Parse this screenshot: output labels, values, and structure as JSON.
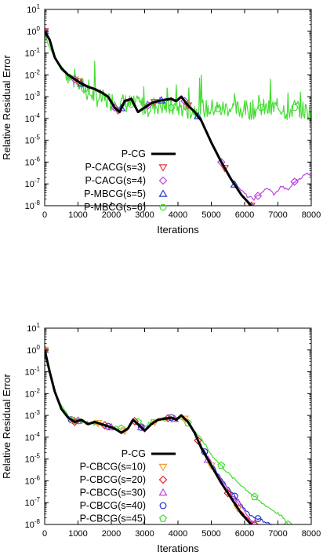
{
  "chart_data": [
    {
      "type": "line",
      "xlabel": "Iterations",
      "ylabel": "Relative Residual Error",
      "xlim": [
        0,
        8000
      ],
      "ylim_log10": [
        -8,
        1
      ],
      "y_scale": "log",
      "grid": false,
      "legend_position": "bottom-left",
      "x_ticks": [
        "0",
        "1000",
        "2000",
        "3000",
        "4000",
        "5000",
        "6000",
        "7000",
        "8000"
      ],
      "y_ticks": [
        {
          "base": "10",
          "exp": "1"
        },
        {
          "base": "10",
          "exp": "0"
        },
        {
          "base": "10",
          "exp": "-1"
        },
        {
          "base": "10",
          "exp": "-2"
        },
        {
          "base": "10",
          "exp": "-3"
        },
        {
          "base": "10",
          "exp": "-4"
        },
        {
          "base": "10",
          "exp": "-5"
        },
        {
          "base": "10",
          "exp": "-6"
        },
        {
          "base": "10",
          "exp": "-7"
        },
        {
          "base": "10",
          "exp": "-8"
        }
      ],
      "series": [
        {
          "name": "P-CG",
          "color": "#000000",
          "marker": "none",
          "width": 3,
          "x": [
            0,
            150,
            300,
            500,
            700,
            900,
            1100,
            1300,
            1500,
            1700,
            1900,
            2100,
            2250,
            2400,
            2600,
            2800,
            3000,
            3200,
            3400,
            3600,
            3800,
            3950,
            4100,
            4300,
            4500,
            4700,
            5000,
            5300,
            5600,
            5900,
            6200
          ],
          "y": [
            0,
            -0.4,
            -1.2,
            -1.7,
            -2.0,
            -2.2,
            -2.4,
            -2.55,
            -2.65,
            -2.8,
            -3.0,
            -3.5,
            -3.7,
            -3.2,
            -3.1,
            -3.7,
            -3.5,
            -3.3,
            -3.2,
            -3.15,
            -3.1,
            -3.2,
            -3.0,
            -3.4,
            -3.7,
            -4.1,
            -5.1,
            -6.0,
            -6.8,
            -7.5,
            -8.0
          ]
        },
        {
          "name": "P-CACG(s=3)",
          "color": "#e8383a",
          "marker": "tri-down",
          "width": 1.2,
          "x": [
            0,
            150,
            300,
            500,
            700,
            900,
            1100,
            1300,
            1500,
            1700,
            1900,
            2100,
            2250,
            2400,
            2600,
            2800,
            3000,
            3200,
            3400,
            3600,
            3800,
            3950,
            4100,
            4300,
            4500,
            4700,
            5000,
            5300,
            5600,
            5900,
            6200
          ],
          "y": [
            0,
            -0.4,
            -1.2,
            -1.7,
            -2.0,
            -2.2,
            -2.4,
            -2.55,
            -2.65,
            -2.8,
            -3.0,
            -3.5,
            -3.7,
            -3.2,
            -3.1,
            -3.7,
            -3.5,
            -3.3,
            -3.2,
            -3.15,
            -3.1,
            -3.2,
            -3.0,
            -3.4,
            -3.7,
            -4.1,
            -5.1,
            -6.0,
            -6.8,
            -7.5,
            -8.0
          ],
          "marker_x": [
            0,
            1000,
            2200,
            3300,
            4300,
            5400,
            6200
          ]
        },
        {
          "name": "P-CACG(s=4)",
          "color": "#bb44dd",
          "marker": "diamond",
          "width": 1.2,
          "x": [
            0,
            150,
            300,
            500,
            700,
            900,
            1100,
            1300,
            1500,
            1700,
            1900,
            2100,
            2250,
            2400,
            2600,
            2800,
            3000,
            3200,
            3400,
            3600,
            3800,
            3950,
            4100,
            4300,
            4500,
            4700,
            5000,
            5300,
            5600,
            5900,
            6100,
            6300,
            6500,
            6700,
            6900,
            7100,
            7300,
            7500,
            7700,
            7900,
            8000
          ],
          "y": [
            0,
            -0.4,
            -1.2,
            -1.7,
            -2.0,
            -2.2,
            -2.4,
            -2.55,
            -2.65,
            -2.8,
            -3.0,
            -3.5,
            -3.7,
            -3.2,
            -3.1,
            -3.7,
            -3.5,
            -3.3,
            -3.2,
            -3.15,
            -3.1,
            -3.2,
            -3.0,
            -3.4,
            -3.7,
            -4.1,
            -5.1,
            -6.0,
            -6.8,
            -7.3,
            -7.6,
            -7.7,
            -7.4,
            -7.2,
            -7.5,
            -7.1,
            -7.3,
            -6.9,
            -6.7,
            -6.5,
            -6.6
          ],
          "marker_x": [
            0,
            900,
            2100,
            3100,
            4200,
            5300,
            6400,
            7500
          ]
        },
        {
          "name": "P-MBCG(s=5)",
          "color": "#2a3ccc",
          "marker": "tri-up",
          "width": 1.2,
          "x": [
            0,
            150,
            300,
            500,
            700,
            900,
            1100,
            1300,
            1500,
            1700,
            1900,
            2100,
            2250,
            2400,
            2600,
            2800,
            3000,
            3200,
            3400,
            3600,
            3800,
            3950,
            4100,
            4300,
            4500,
            4700,
            5000,
            5300,
            5600,
            5900,
            6200
          ],
          "y": [
            0,
            -0.4,
            -1.2,
            -1.7,
            -2.0,
            -2.2,
            -2.4,
            -2.55,
            -2.65,
            -2.8,
            -3.0,
            -3.5,
            -3.7,
            -3.2,
            -3.1,
            -3.7,
            -3.5,
            -3.3,
            -3.2,
            -3.15,
            -3.1,
            -3.2,
            -3.0,
            -3.4,
            -3.7,
            -4.1,
            -5.1,
            -6.0,
            -6.8,
            -7.5,
            -8.0
          ],
          "marker_x": [
            0,
            1100,
            2300,
            3500,
            4600,
            5700,
            6200
          ]
        },
        {
          "name": "P-MBCG(s=6)",
          "color": "#44dd33",
          "marker": "circle",
          "width": 1.2,
          "noisy": true,
          "x": [
            0,
            100,
            300,
            500,
            700,
            900,
            1100,
            1300,
            1500,
            1700,
            1900,
            2100,
            2300,
            2500,
            2700,
            2900,
            3100,
            3300,
            3500,
            3700,
            3900,
            4100,
            4300,
            4500,
            4700,
            4900,
            5100,
            5300,
            5500,
            5700,
            5900,
            6100,
            6300,
            6500,
            6700,
            6900,
            7100,
            7300,
            7500,
            7700,
            7900,
            8000
          ],
          "y": [
            0,
            -0.6,
            -1.2,
            -1.6,
            -2.0,
            -2.3,
            -2.5,
            -2.8,
            -3.0,
            -3.1,
            -3.2,
            -3.2,
            -3.3,
            -3.3,
            -3.4,
            -3.4,
            -3.5,
            -3.4,
            -3.4,
            -3.5,
            -3.5,
            -3.5,
            -3.6,
            -3.6,
            -3.5,
            -3.6,
            -3.5,
            -3.6,
            -3.5,
            -3.6,
            -3.6,
            -3.6,
            -3.6,
            -3.5,
            -3.6,
            -3.5,
            -3.5,
            -3.7,
            -3.5,
            -3.6,
            -3.7,
            -3.7
          ],
          "marker_x": [
            0,
            1200,
            2600,
            3800,
            5200,
            6500,
            7500
          ]
        }
      ]
    },
    {
      "type": "line",
      "xlabel": "Iterations",
      "ylabel": "Relative Residual Error",
      "xlim": [
        0,
        8000
      ],
      "ylim_log10": [
        -8,
        1
      ],
      "y_scale": "log",
      "grid": false,
      "legend_position": "bottom-left",
      "x_ticks": [
        "0",
        "1000",
        "2000",
        "3000",
        "4000",
        "5000",
        "6000",
        "7000",
        "8000"
      ],
      "y_ticks": [
        {
          "base": "10",
          "exp": "1"
        },
        {
          "base": "10",
          "exp": "0"
        },
        {
          "base": "10",
          "exp": "-1"
        },
        {
          "base": "10",
          "exp": "-2"
        },
        {
          "base": "10",
          "exp": "-3"
        },
        {
          "base": "10",
          "exp": "-4"
        },
        {
          "base": "10",
          "exp": "-5"
        },
        {
          "base": "10",
          "exp": "-6"
        },
        {
          "base": "10",
          "exp": "-7"
        },
        {
          "base": "10",
          "exp": "-8"
        }
      ],
      "series": [
        {
          "name": "P-CG",
          "color": "#000000",
          "marker": "none",
          "width": 3,
          "x": [
            0,
            150,
            300,
            500,
            700,
            900,
            1100,
            1300,
            1500,
            1700,
            1900,
            2100,
            2300,
            2500,
            2650,
            2800,
            3000,
            3200,
            3400,
            3600,
            3800,
            3950,
            4100,
            4300,
            4500,
            4700,
            5000,
            5300,
            5600,
            5900,
            6200
          ],
          "y": [
            0,
            -1.0,
            -1.9,
            -2.7,
            -3.1,
            -3.3,
            -3.2,
            -3.4,
            -3.3,
            -3.4,
            -3.5,
            -3.6,
            -3.8,
            -3.6,
            -3.2,
            -3.4,
            -3.7,
            -3.4,
            -3.2,
            -3.15,
            -3.1,
            -3.2,
            -3.0,
            -3.3,
            -3.8,
            -4.5,
            -5.3,
            -6.1,
            -6.8,
            -7.5,
            -8.0
          ]
        },
        {
          "name": "P-CBCG(s=10)",
          "color": "#f0a030",
          "marker": "tri-down",
          "width": 1.2,
          "x": [
            0,
            150,
            300,
            500,
            700,
            900,
            1100,
            1300,
            1500,
            1700,
            1900,
            2100,
            2300,
            2500,
            2650,
            2800,
            3000,
            3200,
            3400,
            3600,
            3800,
            3950,
            4100,
            4300,
            4500,
            4700,
            5000,
            5300,
            5600,
            5900,
            6200
          ],
          "y": [
            0,
            -1.0,
            -1.9,
            -2.7,
            -3.1,
            -3.3,
            -3.2,
            -3.4,
            -3.3,
            -3.4,
            -3.5,
            -3.6,
            -3.8,
            -3.6,
            -3.2,
            -3.4,
            -3.7,
            -3.4,
            -3.2,
            -3.15,
            -3.1,
            -3.2,
            -3.0,
            -3.3,
            -3.8,
            -4.5,
            -5.3,
            -6.1,
            -6.8,
            -7.5,
            -8.0
          ],
          "marker_x": [
            0,
            800,
            1600,
            2400,
            3300,
            4200,
            5000,
            5800
          ]
        },
        {
          "name": "P-CBCG(s=20)",
          "color": "#dd2222",
          "marker": "diamond",
          "width": 1.2,
          "x": [
            0,
            150,
            300,
            500,
            700,
            900,
            1100,
            1300,
            1500,
            1700,
            1900,
            2100,
            2300,
            2500,
            2650,
            2800,
            3000,
            3200,
            3400,
            3600,
            3800,
            3950,
            4100,
            4300,
            4500,
            4700,
            5000,
            5300,
            5600,
            5900,
            6200,
            6300
          ],
          "y": [
            0,
            -1.0,
            -1.9,
            -2.7,
            -3.1,
            -3.3,
            -3.2,
            -3.4,
            -3.3,
            -3.4,
            -3.5,
            -3.6,
            -3.8,
            -3.6,
            -3.2,
            -3.4,
            -3.7,
            -3.4,
            -3.2,
            -3.15,
            -3.1,
            -3.2,
            -3.0,
            -3.3,
            -3.8,
            -4.5,
            -5.3,
            -6.1,
            -6.8,
            -7.4,
            -7.9,
            -8.0
          ],
          "marker_x": [
            0,
            900,
            1800,
            2700,
            3700,
            4600,
            5500,
            6300
          ]
        },
        {
          "name": "P-CBCG(s=30)",
          "color": "#bb44dd",
          "marker": "tri-up",
          "width": 1.2,
          "x": [
            0,
            150,
            300,
            500,
            700,
            900,
            1100,
            1300,
            1500,
            1700,
            1900,
            2100,
            2300,
            2500,
            2650,
            2800,
            3000,
            3200,
            3400,
            3600,
            3800,
            3950,
            4100,
            4300,
            4500,
            4700,
            5000,
            5300,
            5600,
            5900,
            6200,
            6400
          ],
          "y": [
            0,
            -1.0,
            -1.9,
            -2.7,
            -3.1,
            -3.3,
            -3.2,
            -3.4,
            -3.3,
            -3.4,
            -3.5,
            -3.6,
            -3.8,
            -3.6,
            -3.2,
            -3.4,
            -3.7,
            -3.4,
            -3.2,
            -3.15,
            -3.1,
            -3.2,
            -3.0,
            -3.3,
            -3.8,
            -4.5,
            -5.3,
            -6.0,
            -6.6,
            -7.2,
            -7.8,
            -8.0
          ],
          "marker_x": [
            0,
            1000,
            2000,
            2900,
            3900,
            4900,
            5800
          ]
        },
        {
          "name": "P-CBCG(s=40)",
          "color": "#2233cc",
          "marker": "circle",
          "width": 1.2,
          "x": [
            0,
            150,
            300,
            500,
            700,
            900,
            1100,
            1300,
            1500,
            1700,
            1900,
            2100,
            2300,
            2500,
            2650,
            2800,
            3000,
            3200,
            3400,
            3600,
            3800,
            3950,
            4100,
            4300,
            4500,
            4700,
            5000,
            5300,
            5600,
            5900,
            6200,
            6500,
            6800
          ],
          "y": [
            0,
            -1.0,
            -1.9,
            -2.7,
            -3.1,
            -3.3,
            -3.2,
            -3.4,
            -3.3,
            -3.4,
            -3.5,
            -3.6,
            -3.8,
            -3.6,
            -3.2,
            -3.4,
            -3.7,
            -3.4,
            -3.2,
            -3.15,
            -3.1,
            -3.2,
            -3.0,
            -3.3,
            -3.8,
            -4.4,
            -5.2,
            -5.9,
            -6.5,
            -7.1,
            -7.6,
            -7.8,
            -8.0
          ],
          "marker_x": [
            0,
            800,
            1900,
            2900,
            3800,
            4800,
            5700,
            6400
          ]
        },
        {
          "name": "P-CBCG(s=45)",
          "color": "#44dd33",
          "marker": "pentagon",
          "width": 1.2,
          "x": [
            0,
            150,
            300,
            500,
            700,
            900,
            1100,
            1300,
            1500,
            1700,
            1900,
            2100,
            2300,
            2500,
            2650,
            2800,
            3000,
            3200,
            3400,
            3600,
            3800,
            4000,
            4200,
            4400,
            4600,
            4800,
            5000,
            5300,
            5600,
            5900,
            6200,
            6500,
            6800,
            7100,
            7300
          ],
          "y": [
            0,
            -1.0,
            -1.9,
            -2.6,
            -3.0,
            -3.2,
            -3.3,
            -3.3,
            -3.4,
            -3.4,
            -3.5,
            -3.5,
            -3.6,
            -3.6,
            -3.2,
            -3.3,
            -3.5,
            -3.3,
            -3.2,
            -3.2,
            -3.15,
            -3.1,
            -3.2,
            -3.5,
            -3.9,
            -4.3,
            -4.8,
            -5.3,
            -5.8,
            -6.2,
            -6.6,
            -7.0,
            -7.3,
            -7.6,
            -8.0
          ],
          "marker_x": [
            0,
            1000,
            2300,
            2800,
            4300,
            5300,
            6300,
            7300
          ]
        }
      ]
    }
  ]
}
